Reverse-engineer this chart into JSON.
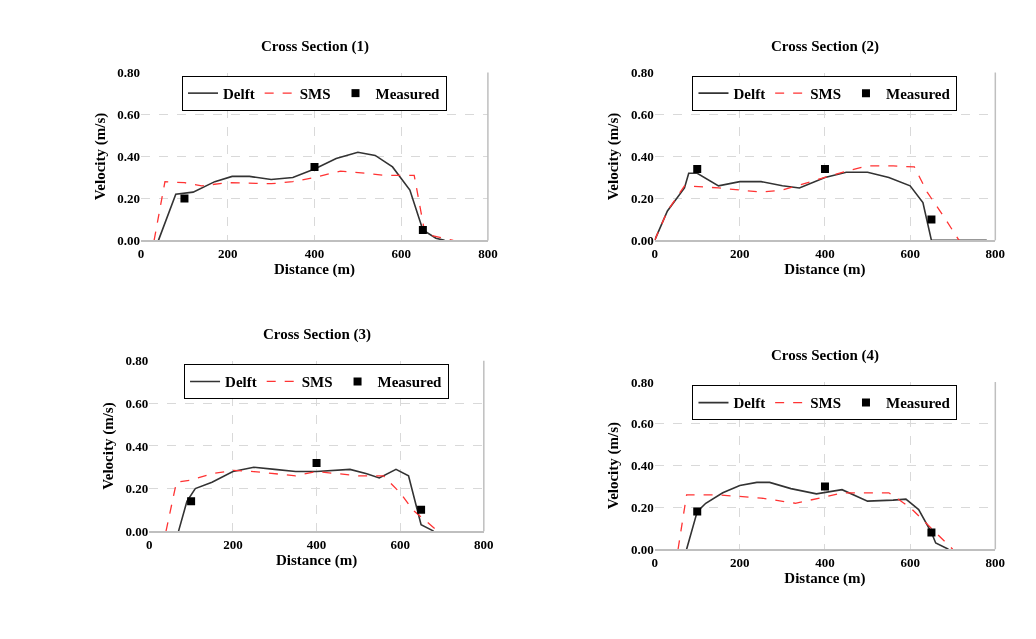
{
  "chart_data": [
    {
      "type": "line",
      "title": "Cross Section (1)",
      "xlabel": "Distance (m)",
      "ylabel": "Velocity (m/s)",
      "xlim": [
        0,
        800
      ],
      "xticks": [
        0,
        200,
        400,
        600,
        800
      ],
      "ylim": [
        0,
        0.8
      ],
      "yticks": [
        {
          "value": 0,
          "label": "0.00"
        },
        {
          "value": 0.2,
          "label": "0.20"
        },
        {
          "value": 0.4,
          "label": "0.40"
        },
        {
          "value": 0.6,
          "label": "0.60"
        },
        {
          "value": 0.8,
          "label": "0.80"
        }
      ],
      "grid": true,
      "legend": "top",
      "series": [
        {
          "name": "Delft",
          "color": "#333333",
          "line_style": "solid",
          "marker": "none",
          "x": [
            40,
            80,
            120,
            170,
            210,
            250,
            300,
            350,
            400,
            450,
            500,
            540,
            580,
            620,
            650,
            680,
            700
          ],
          "values": [
            0,
            0.22,
            0.23,
            0.28,
            0.305,
            0.305,
            0.29,
            0.3,
            0.34,
            0.39,
            0.42,
            0.405,
            0.35,
            0.24,
            0.05,
            0.01,
            0
          ]
        },
        {
          "name": "SMS",
          "color": "#ff3333",
          "line_style": "dashed",
          "marker": "none",
          "x": [
            30,
            55,
            100,
            140,
            200,
            300,
            350,
            400,
            460,
            520,
            560,
            630,
            655,
            720
          ],
          "values": [
            0,
            0.28,
            0.275,
            0.26,
            0.275,
            0.27,
            0.28,
            0.3,
            0.33,
            0.32,
            0.31,
            0.31,
            0.03,
            0
          ]
        },
        {
          "name": "Measured",
          "type": "scatter",
          "color": "#000000",
          "marker": "square",
          "x": [
            100,
            400,
            650
          ],
          "values": [
            0.2,
            0.35,
            0.05
          ]
        }
      ]
    },
    {
      "type": "line",
      "title": "Cross Section (2)",
      "xlabel": "Distance (m)",
      "ylabel": "Velocity (m/s)",
      "xlim": [
        0,
        800
      ],
      "xticks": [
        0,
        200,
        400,
        600,
        800
      ],
      "ylim": [
        0,
        0.8
      ],
      "yticks": [
        {
          "value": 0,
          "label": "0.00"
        },
        {
          "value": 0.2,
          "label": "0.20"
        },
        {
          "value": 0.4,
          "label": "0.40"
        },
        {
          "value": 0.6,
          "label": "0.60"
        },
        {
          "value": 0.8,
          "label": "0.80"
        }
      ],
      "grid": true,
      "legend": "top",
      "series": [
        {
          "name": "Delft",
          "color": "#333333",
          "line_style": "solid",
          "marker": "none",
          "x": [
            0,
            30,
            70,
            80,
            100,
            150,
            200,
            250,
            300,
            340,
            400,
            450,
            500,
            550,
            600,
            630,
            650,
            780
          ],
          "values": [
            0,
            0.14,
            0.25,
            0.32,
            0.32,
            0.26,
            0.28,
            0.28,
            0.26,
            0.25,
            0.3,
            0.325,
            0.325,
            0.3,
            0.26,
            0.18,
            0,
            0
          ]
        },
        {
          "name": "SMS",
          "color": "#ff3333",
          "line_style": "dashed",
          "marker": "none",
          "x": [
            0,
            30,
            70,
            150,
            250,
            300,
            400,
            450,
            500,
            560,
            610,
            640,
            680,
            715
          ],
          "values": [
            0,
            0.14,
            0.26,
            0.25,
            0.23,
            0.24,
            0.3,
            0.33,
            0.355,
            0.355,
            0.35,
            0.23,
            0.11,
            0
          ]
        },
        {
          "name": "Measured",
          "type": "scatter",
          "color": "#000000",
          "marker": "square",
          "x": [
            100,
            400,
            650
          ],
          "values": [
            0.34,
            0.34,
            0.1
          ]
        }
      ]
    },
    {
      "type": "line",
      "title": "Cross Section (3)",
      "xlabel": "Distance (m)",
      "ylabel": "Velocity (m/s)",
      "xlim": [
        0,
        800
      ],
      "xticks": [
        0,
        200,
        400,
        600,
        800
      ],
      "ylim": [
        0,
        0.8
      ],
      "yticks": [
        {
          "value": 0,
          "label": "0.00"
        },
        {
          "value": 0.2,
          "label": "0.20"
        },
        {
          "value": 0.4,
          "label": "0.40"
        },
        {
          "value": 0.6,
          "label": "0.60"
        },
        {
          "value": 0.8,
          "label": "0.80"
        }
      ],
      "grid": true,
      "legend": "top",
      "series": [
        {
          "name": "Delft",
          "color": "#333333",
          "line_style": "solid",
          "marker": "none",
          "x": [
            70,
            90,
            110,
            150,
            200,
            250,
            300,
            350,
            400,
            480,
            520,
            550,
            590,
            620,
            650,
            680
          ],
          "values": [
            0,
            0.14,
            0.2,
            0.23,
            0.28,
            0.3,
            0.29,
            0.28,
            0.28,
            0.29,
            0.27,
            0.25,
            0.29,
            0.26,
            0.03,
            0
          ]
        },
        {
          "name": "SMS",
          "color": "#ff3333",
          "line_style": "dashed",
          "marker": "none",
          "x": [
            40,
            65,
            100,
            150,
            200,
            250,
            350,
            400,
            450,
            500,
            560,
            600,
            630,
            690
          ],
          "values": [
            0,
            0.23,
            0.24,
            0.27,
            0.285,
            0.28,
            0.26,
            0.28,
            0.27,
            0.26,
            0.26,
            0.18,
            0.1,
            0
          ]
        },
        {
          "name": "Measured",
          "type": "scatter",
          "color": "#000000",
          "marker": "square",
          "x": [
            100,
            400,
            650
          ],
          "values": [
            0.14,
            0.32,
            0.1
          ]
        }
      ]
    },
    {
      "type": "line",
      "title": "Cross Section (4)",
      "xlabel": "Distance (m)",
      "ylabel": "Velocity (m/s)",
      "xlim": [
        0,
        800
      ],
      "xticks": [
        0,
        200,
        400,
        600,
        800
      ],
      "ylim": [
        0,
        0.8
      ],
      "yticks": [
        {
          "value": 0,
          "label": "0.00"
        },
        {
          "value": 0.2,
          "label": "0.20"
        },
        {
          "value": 0.4,
          "label": "0.40"
        },
        {
          "value": 0.6,
          "label": "0.60"
        },
        {
          "value": 0.8,
          "label": "0.80"
        }
      ],
      "grid": true,
      "legend": "top",
      "series": [
        {
          "name": "Delft",
          "color": "#333333",
          "line_style": "solid",
          "marker": "none",
          "x": [
            75,
            100,
            120,
            160,
            200,
            240,
            270,
            320,
            380,
            440,
            500,
            560,
            590,
            620,
            650,
            660,
            690
          ],
          "values": [
            0,
            0.18,
            0.22,
            0.27,
            0.305,
            0.32,
            0.32,
            0.29,
            0.265,
            0.285,
            0.23,
            0.235,
            0.24,
            0.19,
            0.08,
            0.03,
            0
          ]
        },
        {
          "name": "SMS",
          "color": "#ff3333",
          "line_style": "dashed",
          "marker": "none",
          "x": [
            55,
            75,
            150,
            250,
            330,
            400,
            440,
            550,
            600,
            650,
            700
          ],
          "values": [
            0,
            0.26,
            0.26,
            0.245,
            0.22,
            0.25,
            0.27,
            0.27,
            0.2,
            0.1,
            0
          ]
        },
        {
          "name": "Measured",
          "type": "scatter",
          "color": "#000000",
          "marker": "square",
          "x": [
            100,
            400,
            650
          ],
          "values": [
            0.18,
            0.3,
            0.08
          ]
        }
      ]
    }
  ]
}
